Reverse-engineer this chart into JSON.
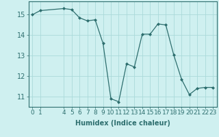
{
  "x": [
    0,
    1,
    4,
    5,
    6,
    7,
    8,
    9,
    10,
    11,
    12,
    13,
    14,
    15,
    16,
    17,
    18,
    19,
    20,
    21,
    22,
    23
  ],
  "y": [
    15.0,
    15.2,
    15.3,
    15.25,
    14.85,
    14.7,
    14.75,
    13.6,
    10.9,
    10.75,
    12.6,
    12.45,
    14.05,
    14.05,
    14.55,
    14.5,
    13.05,
    11.85,
    11.1,
    11.4,
    11.45,
    11.45
  ],
  "line_color": "#2d6e6e",
  "marker": "D",
  "marker_size": 2,
  "bg_color": "#cff0f0",
  "grid_color": "#aadada",
  "xlabel": "Humidex (Indice chaleur)",
  "xticks": [
    0,
    1,
    4,
    5,
    6,
    7,
    8,
    9,
    10,
    11,
    12,
    13,
    14,
    15,
    16,
    17,
    18,
    19,
    20,
    21,
    22,
    23
  ],
  "yticks": [
    11,
    12,
    13,
    14,
    15
  ],
  "ylim": [
    10.5,
    15.65
  ],
  "xlim": [
    -0.5,
    23.5
  ],
  "tick_color": "#2d6e6e",
  "font_size": 6.5,
  "xlabel_fontsize": 7,
  "linewidth": 0.9
}
